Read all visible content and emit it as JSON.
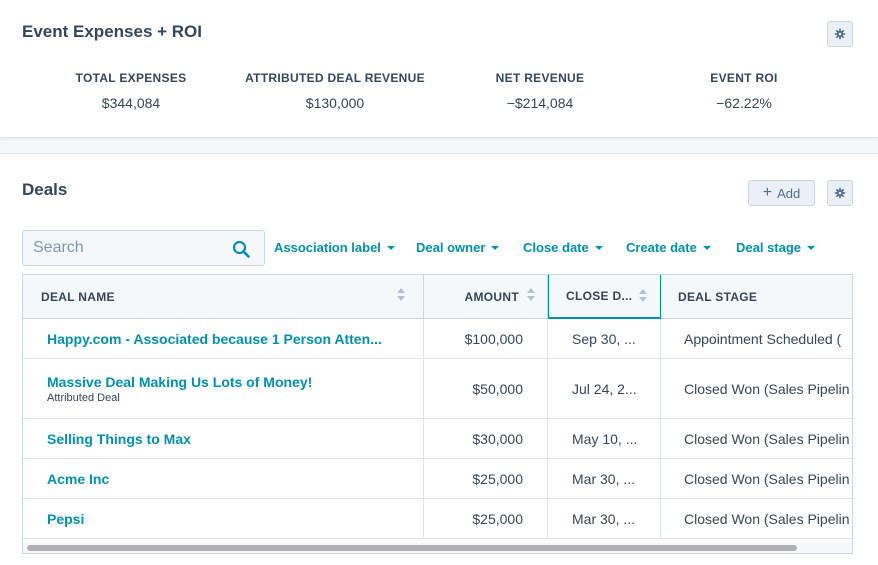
{
  "roi": {
    "title": "Event Expenses + ROI",
    "stats": [
      {
        "label": "TOTAL EXPENSES",
        "value": "$344,084"
      },
      {
        "label": "ATTRIBUTED DEAL REVENUE",
        "value": "$130,000"
      },
      {
        "label": "NET REVENUE",
        "value": "−$214,084"
      },
      {
        "label": "EVENT ROI",
        "value": "−62.22%"
      }
    ]
  },
  "deals": {
    "title": "Deals",
    "add_label": "Add",
    "search_placeholder": "Search",
    "filters": [
      {
        "label": "Association label"
      },
      {
        "label": "Deal owner"
      },
      {
        "label": "Close date"
      },
      {
        "label": "Create date"
      },
      {
        "label": "Deal stage"
      }
    ],
    "columns": {
      "name": "DEAL NAME",
      "amount": "AMOUNT",
      "close": "CLOSE D...",
      "stage": "DEAL STAGE"
    },
    "rows": [
      {
        "name": "Happy.com - Associated because 1 Person Atten...",
        "sub": "",
        "amount": "$100,000",
        "close": "Sep 30, ...",
        "stage": "Appointment Scheduled ("
      },
      {
        "name": "Massive Deal Making Us Lots of Money!",
        "sub": "Attributed Deal",
        "amount": "$50,000",
        "close": "Jul 24, 2...",
        "stage": "Closed Won (Sales Pipelin"
      },
      {
        "name": "Selling Things to Max",
        "sub": "",
        "amount": "$30,000",
        "close": "May 10, ...",
        "stage": "Closed Won (Sales Pipelin"
      },
      {
        "name": "Acme Inc",
        "sub": "",
        "amount": "$25,000",
        "close": "Mar 30, ...",
        "stage": "Closed Won (Sales Pipelin"
      },
      {
        "name": "Pepsi",
        "sub": "",
        "amount": "$25,000",
        "close": "Mar 30, ...",
        "stage": "Closed Won (Sales Pipelin"
      }
    ]
  },
  "colors": {
    "link": "#0091ae",
    "text": "#33475b",
    "border": "#cbd6e2",
    "background": "#f5f8fa"
  }
}
